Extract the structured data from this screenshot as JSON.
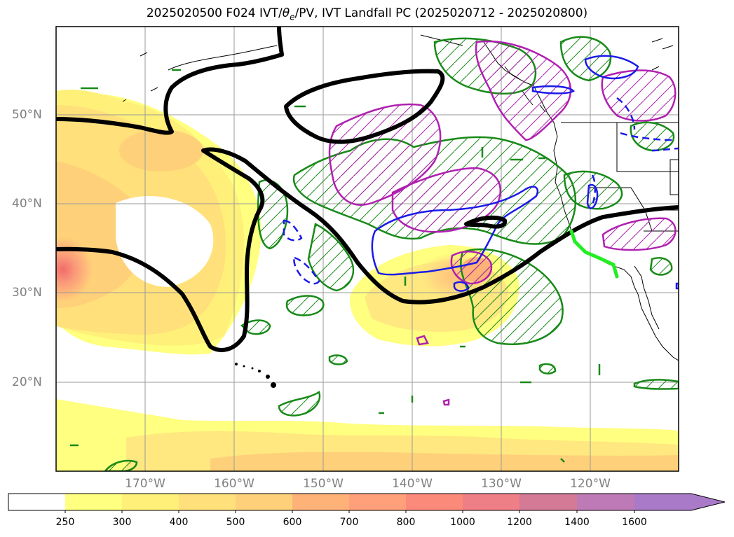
{
  "title": {
    "before_symbol": "2025020500 F024 IVT/",
    "symbol": "θ",
    "symbol_sub": "e",
    "after_symbol": "/PV, IVT Landfall PC (2025020712 - 2025020800)"
  },
  "map": {
    "projection": "equirectangular",
    "lon_range": [
      -180,
      -110
    ],
    "lat_range": [
      10,
      60
    ],
    "lat_labels": [
      "50°N",
      "40°N",
      "30°N",
      "20°N"
    ],
    "lon_labels": [
      "170°W",
      "160°W",
      "150°W",
      "140°W",
      "130°W",
      "120°W"
    ],
    "gridlines": true,
    "overlays": {
      "ivt_fill": "yellow-orange-red filled contours of integrated vapor transport",
      "black_contour": "thick black theta-e / PV contour",
      "green_hatched": "green hatched contours",
      "magenta_hatched": "magenta hatched contours",
      "blue_contours": "blue solid and dashed contours",
      "landfall_line": "bright green landfall segment along the California coast"
    }
  },
  "colorbar": {
    "ticks": [
      "250",
      "300",
      "400",
      "500",
      "600",
      "700",
      "800",
      "1000",
      "1200",
      "1400",
      "1600"
    ],
    "colors": [
      "#ffffff",
      "#ffff80",
      "#fff07a",
      "#ffe07a",
      "#ffd07a",
      "#ffb278",
      "#ffa07a",
      "#fb8a7a",
      "#ee7f86",
      "#d57a96",
      "#be7ab6",
      "#a87ac8"
    ],
    "extend": "max"
  }
}
